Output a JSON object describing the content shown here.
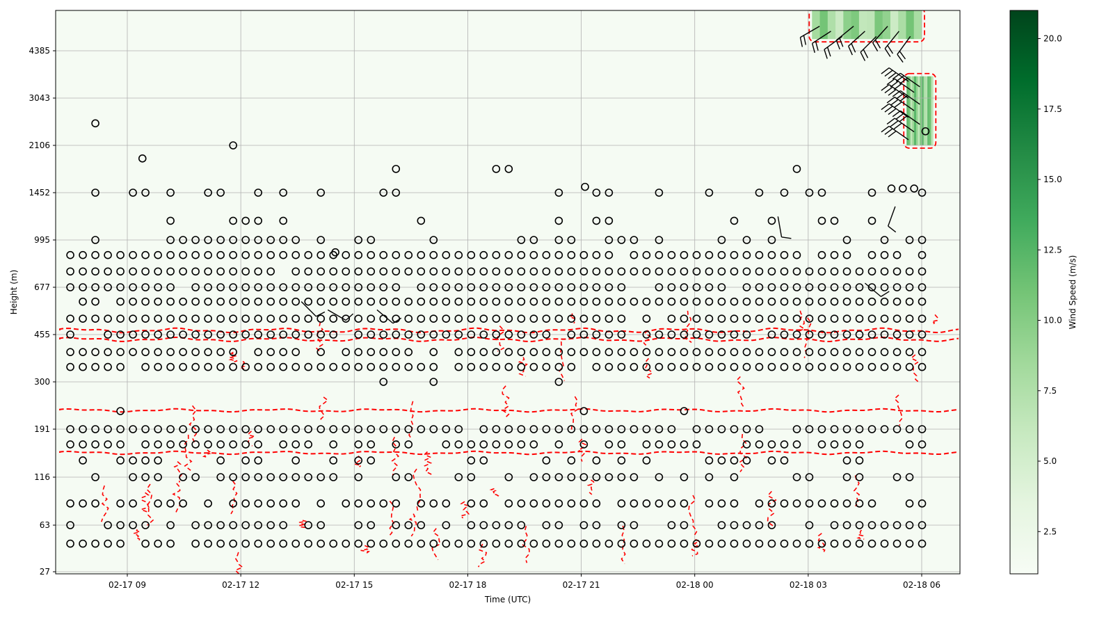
{
  "chart_data": {
    "type": "heatmap",
    "xlabel": "Time (UTC)",
    "ylabel": "Height (m)",
    "colorbar_label": "Wind Speed (m/s)",
    "colormap": "Greens",
    "x_range_hours": [
      6.3,
      30.2
    ],
    "x_tick_labels": [
      "02-17 09",
      "02-17 12",
      "02-17 15",
      "02-17 18",
      "02-17 21",
      "02-18 00",
      "02-18 03",
      "02-18 06"
    ],
    "x_tick_hours": [
      9,
      12,
      15,
      18,
      21,
      24,
      27,
      30
    ],
    "y_tick_labels": [
      "27",
      "63",
      "116",
      "191",
      "300",
      "455",
      "677",
      "995",
      "1452",
      "2106",
      "3043",
      "4385"
    ],
    "height_levels": [
      45,
      63,
      83,
      116,
      138,
      163,
      191,
      227,
      300,
      342,
      390,
      455,
      520,
      600,
      677,
      770,
      880,
      995,
      1160,
      1452,
      1750,
      2106,
      2500,
      3043,
      3600,
      4385,
      5200
    ],
    "colorbar_ticks": [
      "2.5",
      "5.0",
      "7.5",
      "10.0",
      "12.5",
      "15.0",
      "17.5",
      "20.0"
    ],
    "colorbar_range": [
      1.0,
      21.0
    ],
    "grid": true,
    "observation_marker": "circle",
    "missing_data_marker": "circle",
    "contour_color": "#ff0000",
    "contour_style": "dashed",
    "high_wind_regions": [
      {
        "time_start": 27.1,
        "time_end": 30.0,
        "height_start": 4800,
        "height_end": 6000,
        "wind_speed": 11.0
      },
      {
        "time_start": 29.6,
        "time_end": 30.3,
        "height_start": 2106,
        "height_end": 3600,
        "wind_speed": 12.5
      }
    ],
    "background_wind_speed": 1.2
  },
  "colors": {
    "grid": "#b0b0b0",
    "marker": "#000000",
    "contour": "#ff0000"
  }
}
